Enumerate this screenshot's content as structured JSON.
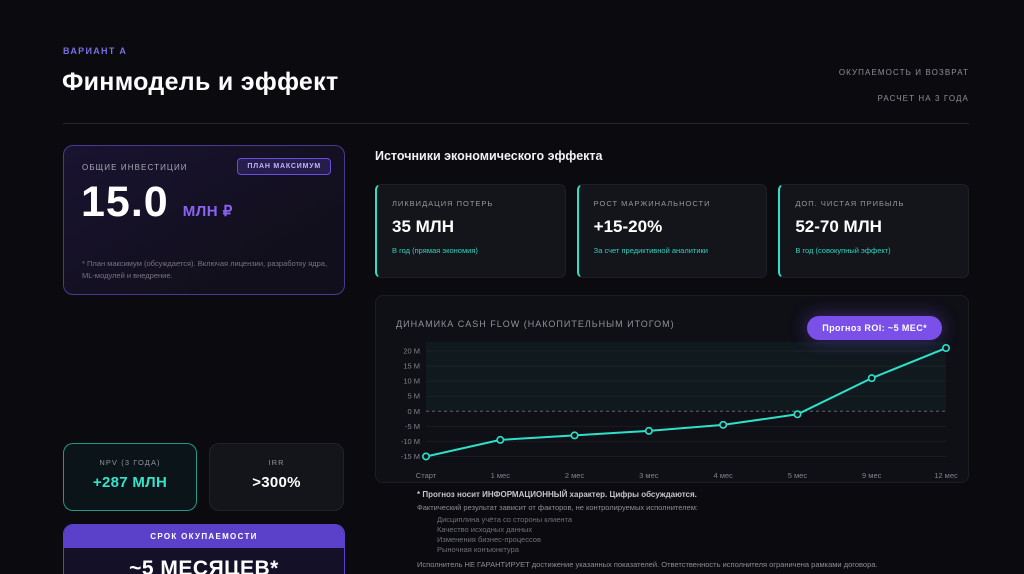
{
  "header": {
    "eyebrow": "ВАРИАНТ А",
    "title": "Финмодель и эффект",
    "right_line1": "ОКУПАЕМОСТЬ И ВОЗВРАТ",
    "right_line2": "РАСЧЕТ НА 3 ГОДА"
  },
  "investment": {
    "label": "ОБЩИЕ ИНВЕСТИЦИИ",
    "badge": "ПЛАН МАКСИМУМ",
    "value": "15.0",
    "unit": "МЛН ₽",
    "note": "* План максимум (обсуждается). Включая лицензии, разработку ядра, ML-модулей и внедрение."
  },
  "metrics": {
    "npv": {
      "label": "NPV (3 ГОДА)",
      "value": "+287 МЛН"
    },
    "irr": {
      "label": "IRR",
      "value": ">300%"
    }
  },
  "payback": {
    "label": "СРОК ОКУПАЕМОСТИ",
    "value": "~5 МЕСЯЦЕВ*"
  },
  "sources": {
    "title": "Источники экономического эффекта",
    "cards": [
      {
        "label": "ЛИКВИДАЦИЯ ПОТЕРЬ",
        "value": "35 МЛН",
        "note": "В год (прямая экономия)"
      },
      {
        "label": "РОСТ МАРЖИНАЛЬНОСТИ",
        "value": "+15-20%",
        "note": "За счет предиктивной аналитики"
      },
      {
        "label": "ДОП. ЧИСТАЯ ПРИБЫЛЬ",
        "value": "52-70 МЛН",
        "note": "В год (совокупный эффект)"
      }
    ]
  },
  "chart_data": {
    "type": "line",
    "title": "ДИНАМИКА CASH FLOW (НАКОПИТЕЛЬНЫМ ИТОГОМ)",
    "annotation": "Прогноз ROI: ~5 МЕС*",
    "x": [
      "Старт",
      "1 мес",
      "2 мес",
      "3 мес",
      "4 мес",
      "5 мес",
      "9 мес",
      "12 мес"
    ],
    "values": [
      -15,
      -9.5,
      -8,
      -6.5,
      -4.5,
      -1,
      11,
      21
    ],
    "y_ticks": [
      20,
      15,
      10,
      5,
      0,
      -5,
      -10,
      -15
    ],
    "y_tick_labels": [
      "20 М",
      "15 М",
      "10 М",
      "5 М",
      "0 М",
      "-5 М",
      "-10 М",
      "-15 М"
    ],
    "ylim": [
      -17.5,
      23
    ],
    "line_color": "#2fe0c8",
    "grid": true,
    "zero_line": "dashed",
    "legend": "none"
  },
  "disclaimer": {
    "line1": "* Прогноз носит ИНФОРМАЦИОННЫЙ характер. Цифры обсуждаются.",
    "line2": "Фактический результат зависит от факторов, не контролируемых исполнителем:",
    "bullets": [
      "Дисциплина учёта со стороны клиента",
      "Качество исходных данных",
      "Изменения бизнес-процессов",
      "Рыночная конъюнктура"
    ],
    "line3": "Исполнитель НЕ ГАРАНТИРУЕТ достижение указанных показателей. Ответственность исполнителя ограничена рамками договора."
  },
  "colors": {
    "background": "#0a0a0f",
    "accent_purple": "#7a50e8",
    "accent_teal": "#2fe0c8"
  }
}
